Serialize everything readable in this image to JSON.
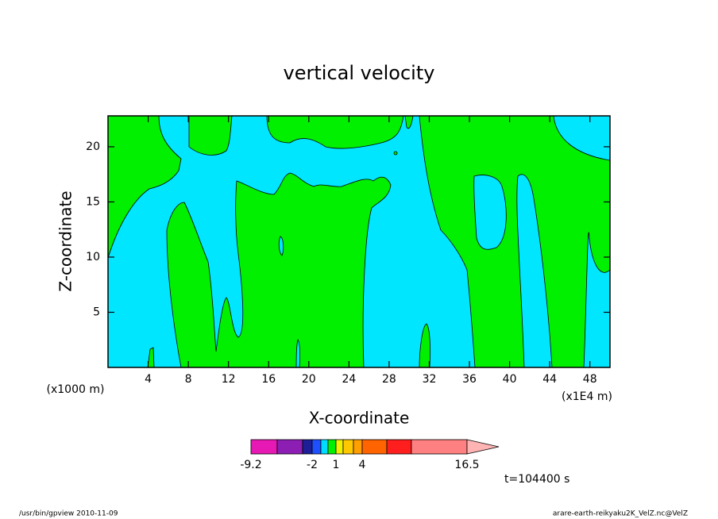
{
  "chart_data": {
    "type": "contour",
    "title": "vertical velocity",
    "xlabel": "X-coordinate",
    "ylabel": "Z-coordinate",
    "x_unit_note": "(x1000 m)",
    "x_scale_note": "(x1E4 m)",
    "xlim": [
      0,
      50
    ],
    "ylim": [
      0,
      22.8
    ],
    "xticks": [
      4,
      8,
      12,
      16,
      20,
      24,
      28,
      32,
      36,
      40,
      44,
      48
    ],
    "yticks": [
      5,
      10,
      15,
      20
    ],
    "colorbar": {
      "colors": [
        "#e619b4",
        "#8c1eb4",
        "#1e1e96",
        "#1e50ff",
        "#00dcff",
        "#00f000",
        "#f0f000",
        "#ffc800",
        "#ffa000",
        "#ff6400",
        "#ff1e1e",
        "#ff8080",
        "#ffb4b4"
      ],
      "ticks": [
        -9.2,
        -2,
        1,
        4,
        16.5
      ]
    },
    "time_note": "t=104400 s",
    "footer_left": "/usr/bin/gpview   2010-11-09",
    "footer_right": "arare-earth-reikyaku2K_VelZ.nc@VelZ"
  }
}
